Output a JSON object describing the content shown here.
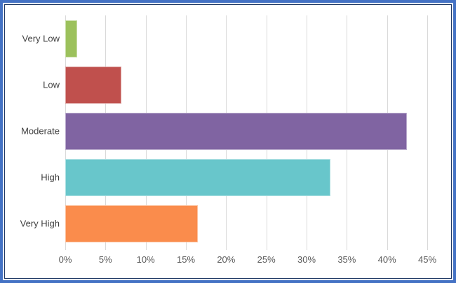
{
  "frame": {
    "outer_border_color": "#4472C4",
    "inner_border_color": "#1F3864",
    "background": "#FFFFFF"
  },
  "chart_data": {
    "type": "bar",
    "orientation": "horizontal",
    "title": "",
    "xlabel": "",
    "ylabel": "",
    "categories": [
      "Very Low",
      "Low",
      "Moderate",
      "High",
      "Very High"
    ],
    "values": [
      1.5,
      7,
      42.5,
      33,
      16.5
    ],
    "value_unit": "%",
    "bar_colors": [
      "#9CC15C",
      "#C0504D",
      "#8064A2",
      "#68C6CB",
      "#FA8C4C"
    ],
    "xlim": [
      0,
      45
    ],
    "x_tick_labels": [
      "0%",
      "5%",
      "10%",
      "15%",
      "20%",
      "25%",
      "30%",
      "35%",
      "40%",
      "45%"
    ],
    "grid": true,
    "gridline_color": "#D9D9D9",
    "legend": false,
    "tick_label_color": "#595959",
    "category_label_color": "#3F3F3F"
  }
}
